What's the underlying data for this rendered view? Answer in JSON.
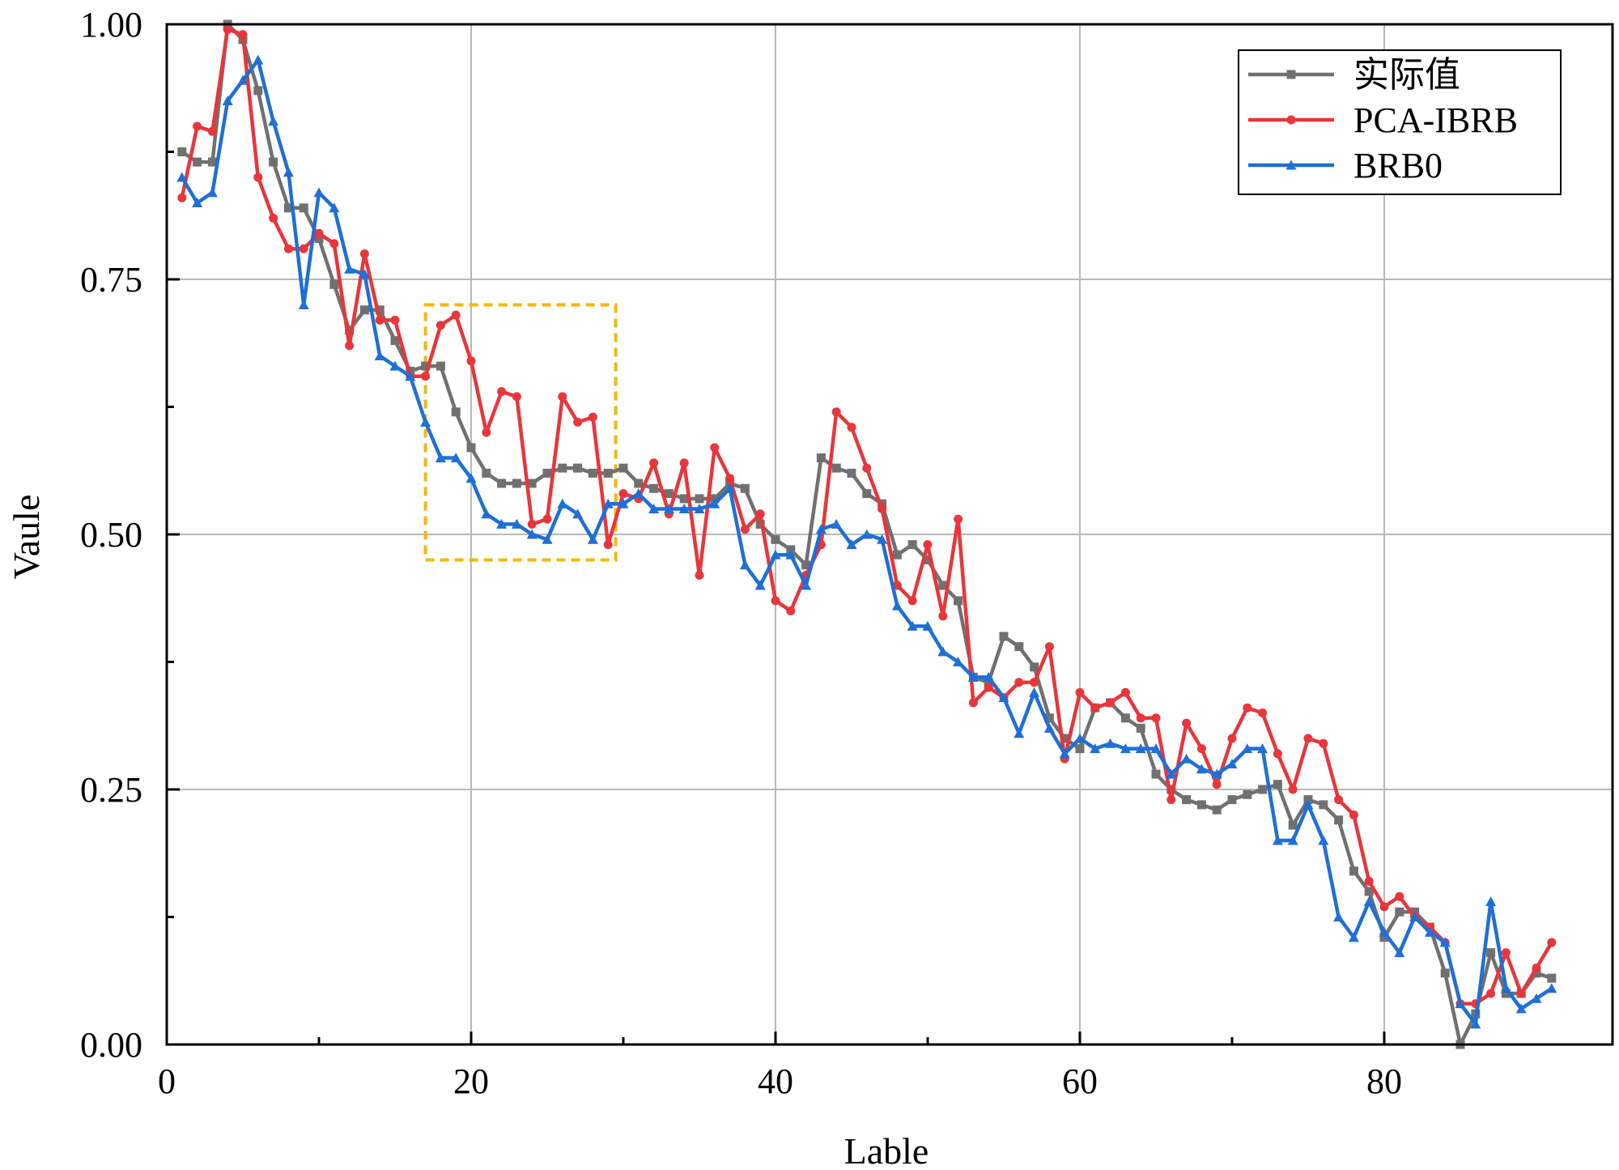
{
  "chart_data": {
    "type": "line",
    "title": "",
    "xlabel": "Lable",
    "ylabel": "Vaule",
    "xlim": [
      0,
      95
    ],
    "ylim": [
      0,
      1
    ],
    "x_ticks": [
      "0",
      "20",
      "40",
      "60",
      "80"
    ],
    "y_ticks": [
      "0.00",
      "0.25",
      "0.50",
      "0.75",
      "1.00"
    ],
    "grid": true,
    "legend_position": "top-right",
    "x": [
      1,
      2,
      3,
      4,
      5,
      6,
      7,
      8,
      9,
      10,
      11,
      12,
      13,
      14,
      15,
      16,
      17,
      18,
      19,
      20,
      21,
      22,
      23,
      24,
      25,
      26,
      27,
      28,
      29,
      30,
      31,
      32,
      33,
      34,
      35,
      36,
      37,
      38,
      39,
      40,
      41,
      42,
      43,
      44,
      45,
      46,
      47,
      48,
      49,
      50,
      51,
      52,
      53,
      54,
      55,
      56,
      57,
      58,
      59,
      60,
      61,
      62,
      63,
      64,
      65,
      66,
      67,
      68,
      69,
      70,
      71,
      72,
      73,
      74,
      75,
      76,
      77,
      78,
      79,
      80,
      81,
      82,
      83,
      84,
      85,
      86,
      87,
      88,
      89,
      90,
      91
    ],
    "series": [
      {
        "name": "实际值",
        "color": "#707070",
        "marker": "square",
        "values": [
          0.875,
          0.865,
          0.865,
          1.0,
          0.985,
          0.935,
          0.865,
          0.82,
          0.82,
          0.79,
          0.745,
          0.7,
          0.72,
          0.72,
          0.69,
          0.66,
          0.665,
          0.665,
          0.62,
          0.585,
          0.56,
          0.55,
          0.55,
          0.55,
          0.56,
          0.565,
          0.565,
          0.56,
          0.56,
          0.565,
          0.55,
          0.545,
          0.54,
          0.535,
          0.535,
          0.535,
          0.55,
          0.545,
          0.51,
          0.495,
          0.485,
          0.47,
          0.575,
          0.565,
          0.56,
          0.54,
          0.53,
          0.48,
          0.49,
          0.475,
          0.45,
          0.435,
          0.36,
          0.355,
          0.4,
          0.39,
          0.37,
          0.32,
          0.3,
          0.29,
          0.33,
          0.335,
          0.32,
          0.31,
          0.265,
          0.25,
          0.24,
          0.235,
          0.23,
          0.24,
          0.245,
          0.25,
          0.255,
          0.215,
          0.24,
          0.235,
          0.22,
          0.17,
          0.15,
          0.105,
          0.13,
          0.13,
          0.115,
          0.07,
          0.0,
          0.03,
          0.09,
          0.05,
          0.05,
          0.07,
          0.065
        ]
      },
      {
        "name": "PCA-IBRB",
        "color": "#e8363a",
        "marker": "circle",
        "values": [
          0.83,
          0.9,
          0.895,
          0.995,
          0.99,
          0.85,
          0.81,
          0.78,
          0.78,
          0.795,
          0.785,
          0.685,
          0.775,
          0.71,
          0.71,
          0.655,
          0.655,
          0.705,
          0.715,
          0.67,
          0.6,
          0.64,
          0.635,
          0.51,
          0.515,
          0.635,
          0.61,
          0.615,
          0.49,
          0.54,
          0.535,
          0.57,
          0.52,
          0.57,
          0.46,
          0.585,
          0.555,
          0.505,
          0.52,
          0.435,
          0.425,
          0.46,
          0.49,
          0.62,
          0.605,
          0.565,
          0.525,
          0.45,
          0.435,
          0.49,
          0.42,
          0.515,
          0.335,
          0.35,
          0.34,
          0.355,
          0.355,
          0.39,
          0.28,
          0.345,
          0.33,
          0.335,
          0.345,
          0.32,
          0.32,
          0.24,
          0.315,
          0.29,
          0.255,
          0.3,
          0.33,
          0.325,
          0.285,
          0.25,
          0.3,
          0.295,
          0.24,
          0.225,
          0.16,
          0.135,
          0.145,
          0.125,
          0.115,
          0.1,
          0.04,
          0.04,
          0.05,
          0.09,
          0.05,
          0.075,
          0.1
        ]
      },
      {
        "name": "BRB0",
        "color": "#1f6fd6",
        "marker": "triangle",
        "values": [
          0.85,
          0.825,
          0.835,
          0.925,
          0.945,
          0.965,
          0.905,
          0.855,
          0.725,
          0.835,
          0.82,
          0.76,
          0.755,
          0.675,
          0.665,
          0.655,
          0.61,
          0.575,
          0.575,
          0.555,
          0.52,
          0.51,
          0.51,
          0.5,
          0.495,
          0.53,
          0.52,
          0.495,
          0.53,
          0.53,
          0.54,
          0.525,
          0.525,
          0.525,
          0.525,
          0.53,
          0.545,
          0.47,
          0.45,
          0.48,
          0.48,
          0.45,
          0.505,
          0.51,
          0.49,
          0.5,
          0.495,
          0.43,
          0.41,
          0.41,
          0.385,
          0.375,
          0.36,
          0.36,
          0.34,
          0.305,
          0.345,
          0.31,
          0.285,
          0.3,
          0.29,
          0.295,
          0.29,
          0.29,
          0.29,
          0.265,
          0.28,
          0.27,
          0.265,
          0.275,
          0.29,
          0.29,
          0.2,
          0.2,
          0.235,
          0.2,
          0.125,
          0.105,
          0.14,
          0.11,
          0.09,
          0.125,
          0.11,
          0.1,
          0.04,
          0.02,
          0.14,
          0.055,
          0.035,
          0.045,
          0.055
        ]
      }
    ],
    "annotations": [
      {
        "type": "dashed-rectangle",
        "color": "#f5b800",
        "x_range": [
          17,
          29.5
        ],
        "y_range": [
          0.475,
          0.725
        ]
      }
    ]
  }
}
